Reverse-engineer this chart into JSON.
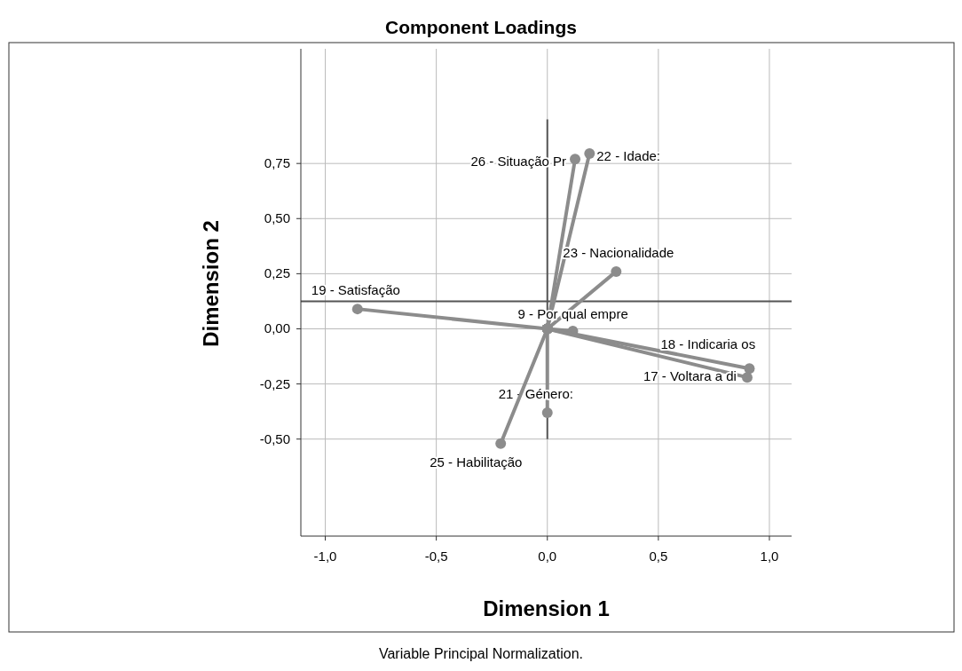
{
  "chart_data": {
    "type": "line",
    "title": "Component Loadings",
    "xlabel": "Dimension 1",
    "ylabel": "Dimension 2",
    "annotations": [
      "Variable Principal Normalization."
    ],
    "xlim": [
      -1.11,
      1.1
    ],
    "ylim": [
      -0.94,
      1.27
    ],
    "xticks": [
      {
        "value": -1,
        "label": "-1,0"
      },
      {
        "value": -0.5,
        "label": "-0,5"
      },
      {
        "value": 0,
        "label": "0,0"
      },
      {
        "value": 0.5,
        "label": "0,5"
      },
      {
        "value": 1,
        "label": "1,0"
      }
    ],
    "yticks": [
      {
        "value": -0.5,
        "label": "-0,50"
      },
      {
        "value": -0.25,
        "label": "-0,25"
      },
      {
        "value": 0,
        "label": "0,00"
      },
      {
        "value": 0.25,
        "label": "0,25"
      },
      {
        "value": 0.5,
        "label": "0,50"
      },
      {
        "value": 0.75,
        "label": "0,75"
      }
    ],
    "grid": true,
    "marker": "circle",
    "line_style": "solid",
    "ref_lines": [
      {
        "axis": "y",
        "value": 0.125,
        "color": "#555555"
      },
      {
        "axis": "x",
        "value": 0,
        "color": "#555555"
      }
    ],
    "series": [
      {
        "name": "19 - Satisfação",
        "color": "#8c8c8c",
        "x": [
          0,
          -0.855
        ],
        "values": [
          0,
          0.09
        ]
      },
      {
        "name": "26 - Situação Pr",
        "color": "#8c8c8c",
        "x": [
          0,
          0.125
        ],
        "values": [
          0,
          0.77
        ]
      },
      {
        "name": "22 - Idade:",
        "color": "#8c8c8c",
        "x": [
          0,
          0.19
        ],
        "values": [
          0,
          0.795
        ]
      },
      {
        "name": "23 - Nacionalidade",
        "color": "#8c8c8c",
        "x": [
          0,
          0.31
        ],
        "values": [
          0,
          0.26
        ]
      },
      {
        "name": "9 - Por qual empre",
        "color": "#8c8c8c",
        "x": [
          0,
          0.115
        ],
        "values": [
          0,
          -0.01
        ]
      },
      {
        "name": "18 - Indicaria os",
        "color": "#8c8c8c",
        "x": [
          0,
          0.91
        ],
        "values": [
          0,
          -0.18
        ]
      },
      {
        "name": "17 - Voltara a di",
        "color": "#8c8c8c",
        "x": [
          0,
          0.9
        ],
        "values": [
          0,
          -0.22
        ]
      },
      {
        "name": "21 - Género:",
        "color": "#8c8c8c",
        "x": [
          0,
          0
        ],
        "values": [
          0,
          -0.38
        ]
      },
      {
        "name": "25 - Habilitação",
        "color": "#8c8c8c",
        "x": [
          0,
          -0.21
        ],
        "values": [
          0,
          -0.52
        ]
      }
    ]
  }
}
